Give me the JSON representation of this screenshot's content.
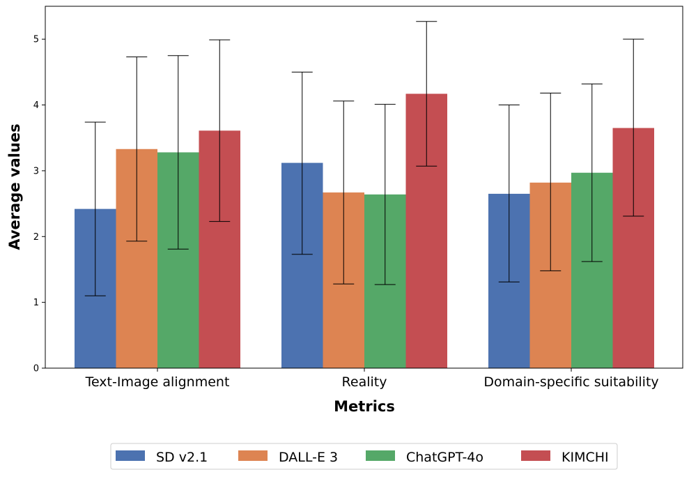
{
  "chart_data": {
    "type": "bar",
    "title": "",
    "xlabel": "Metrics",
    "ylabel": "Average values",
    "categories": [
      "Text-Image alignment",
      "Reality",
      "Domain-specific suitability"
    ],
    "ylim": [
      0,
      5.5
    ],
    "yticks": [
      0,
      1,
      2,
      3,
      4,
      5
    ],
    "grid": false,
    "legend": {
      "placement": "bottom-center",
      "columns": 4
    },
    "series": [
      {
        "name": "SD v2.1",
        "color": "#4c72b0",
        "values": [
          2.42,
          3.12,
          2.65
        ],
        "error_low": [
          1.1,
          1.73,
          1.31
        ],
        "error_high": [
          3.74,
          4.5,
          4.0
        ]
      },
      {
        "name": "DALL-E 3",
        "color": "#dd8452",
        "values": [
          3.33,
          2.67,
          2.82
        ],
        "error_low": [
          1.93,
          1.28,
          1.48
        ],
        "error_high": [
          4.73,
          4.06,
          4.18
        ]
      },
      {
        "name": "ChatGPT-4o",
        "color": "#55a868",
        "values": [
          3.28,
          2.64,
          2.97
        ],
        "error_low": [
          1.81,
          1.27,
          1.62
        ],
        "error_high": [
          4.75,
          4.01,
          4.32
        ]
      },
      {
        "name": "KIMCHI",
        "color": "#c44e52",
        "values": [
          3.61,
          4.17,
          3.65
        ],
        "error_low": [
          2.23,
          3.07,
          2.31
        ],
        "error_high": [
          4.99,
          5.27,
          5.0
        ]
      }
    ]
  }
}
